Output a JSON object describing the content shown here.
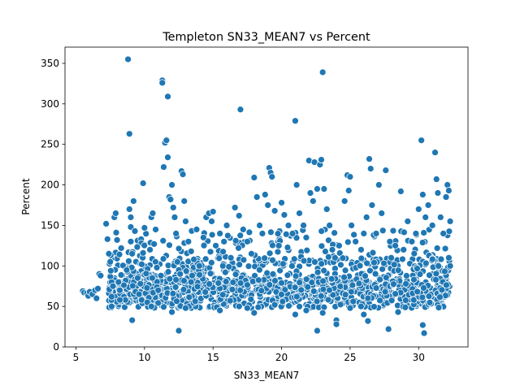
{
  "chart_data": {
    "type": "scatter",
    "title": "Templeton SN33_MEAN7 vs Percent",
    "xlabel": "SN33_MEAN7",
    "ylabel": "Percent",
    "xlim": [
      4.2,
      33.6
    ],
    "ylim": [
      0,
      370
    ],
    "x_ticks": [
      5,
      10,
      15,
      20,
      25,
      30
    ],
    "y_ticks": [
      0,
      50,
      100,
      150,
      200,
      250,
      300,
      350
    ],
    "grid": false,
    "legend": "none",
    "point_color": "#1f77b4",
    "points": [
      [
        5.5,
        69
      ],
      [
        5.6,
        67
      ],
      [
        5.8,
        66
      ],
      [
        5.9,
        63
      ],
      [
        6.0,
        68
      ],
      [
        6.2,
        65
      ],
      [
        6.4,
        70
      ],
      [
        6.5,
        60
      ],
      [
        6.6,
        72
      ],
      [
        6.7,
        90
      ],
      [
        6.8,
        88
      ],
      [
        7.2,
        152
      ],
      [
        7.3,
        133
      ],
      [
        7.4,
        115
      ],
      [
        7.5,
        105
      ],
      [
        7.6,
        80
      ],
      [
        7.7,
        75
      ],
      [
        7.8,
        160
      ],
      [
        7.9,
        165
      ],
      [
        8.0,
        132
      ],
      [
        8.1,
        80
      ],
      [
        8.2,
        70
      ],
      [
        8.3,
        122
      ],
      [
        8.5,
        62
      ],
      [
        8.6,
        58
      ],
      [
        8.7,
        95
      ],
      [
        8.8,
        355
      ],
      [
        8.9,
        263
      ],
      [
        8.9,
        170
      ],
      [
        9.0,
        160
      ],
      [
        9.0,
        130
      ],
      [
        9.0,
        148
      ],
      [
        9.1,
        115
      ],
      [
        9.2,
        180
      ],
      [
        9.1,
        33
      ],
      [
        9.3,
        143
      ],
      [
        9.5,
        85
      ],
      [
        9.6,
        65
      ],
      [
        9.7,
        78
      ],
      [
        9.8,
        102
      ],
      [
        9.9,
        202
      ],
      [
        10.0,
        147
      ],
      [
        10.2,
        55
      ],
      [
        10.4,
        120
      ],
      [
        10.5,
        160
      ],
      [
        10.6,
        165
      ],
      [
        10.7,
        127
      ],
      [
        10.8,
        105
      ],
      [
        10.9,
        98
      ],
      [
        11.0,
        70
      ],
      [
        11.2,
        88
      ],
      [
        11.3,
        329
      ],
      [
        11.3,
        326
      ],
      [
        11.4,
        222
      ],
      [
        11.5,
        252
      ],
      [
        11.6,
        255
      ],
      [
        11.7,
        309
      ],
      [
        11.7,
        234
      ],
      [
        11.8,
        185
      ],
      [
        11.9,
        182
      ],
      [
        12.0,
        200
      ],
      [
        12.1,
        172
      ],
      [
        12.2,
        160
      ],
      [
        12.3,
        140
      ],
      [
        12.4,
        105
      ],
      [
        12.5,
        95
      ],
      [
        12.6,
        90
      ],
      [
        12.7,
        217
      ],
      [
        12.8,
        213
      ],
      [
        12.9,
        180
      ],
      [
        12.0,
        43
      ],
      [
        13.0,
        155
      ],
      [
        13.2,
        130
      ],
      [
        13.4,
        118
      ],
      [
        13.6,
        108
      ],
      [
        13.8,
        145
      ],
      [
        14.0,
        100
      ],
      [
        14.3,
        135
      ],
      [
        14.5,
        160
      ],
      [
        14.7,
        165
      ],
      [
        14.9,
        155
      ],
      [
        15.0,
        167
      ],
      [
        15.2,
        125
      ],
      [
        15.5,
        140
      ],
      [
        15.8,
        130
      ],
      [
        16.0,
        150
      ],
      [
        16.3,
        110
      ],
      [
        16.6,
        172
      ],
      [
        16.9,
        162
      ],
      [
        17.0,
        293
      ],
      [
        17.2,
        145
      ],
      [
        17.5,
        130
      ],
      [
        17.8,
        115
      ],
      [
        18.0,
        209
      ],
      [
        18.2,
        185
      ],
      [
        18.4,
        150
      ],
      [
        18.6,
        140
      ],
      [
        18.8,
        188
      ],
      [
        19.0,
        175
      ],
      [
        19.1,
        221
      ],
      [
        19.2,
        215
      ],
      [
        19.3,
        210
      ],
      [
        19.5,
        168
      ],
      [
        19.8,
        125
      ],
      [
        20.0,
        178
      ],
      [
        20.2,
        163
      ],
      [
        20.5,
        150
      ],
      [
        20.8,
        140
      ],
      [
        21.0,
        279
      ],
      [
        21.1,
        200
      ],
      [
        21.3,
        165
      ],
      [
        21.6,
        150
      ],
      [
        21.8,
        135
      ],
      [
        22.0,
        230
      ],
      [
        22.1,
        190
      ],
      [
        22.3,
        180
      ],
      [
        22.4,
        228
      ],
      [
        22.6,
        195
      ],
      [
        22.8,
        225
      ],
      [
        22.9,
        231
      ],
      [
        23.0,
        339
      ],
      [
        23.1,
        195
      ],
      [
        23.3,
        170
      ],
      [
        23.5,
        150
      ],
      [
        23.7,
        120
      ],
      [
        23.9,
        110
      ],
      [
        24.2,
        125
      ],
      [
        24.6,
        180
      ],
      [
        24.8,
        212
      ],
      [
        24.9,
        193
      ],
      [
        25.0,
        210
      ],
      [
        25.1,
        150
      ],
      [
        25.4,
        130
      ],
      [
        25.8,
        120
      ],
      [
        26.0,
        140
      ],
      [
        26.2,
        160
      ],
      [
        26.4,
        232
      ],
      [
        26.5,
        220
      ],
      [
        26.6,
        175
      ],
      [
        26.9,
        140
      ],
      [
        27.1,
        200
      ],
      [
        27.3,
        165
      ],
      [
        27.6,
        218
      ],
      [
        27.9,
        130
      ],
      [
        28.0,
        110
      ],
      [
        28.3,
        125
      ],
      [
        28.7,
        192
      ],
      [
        28.9,
        120
      ],
      [
        29.2,
        155
      ],
      [
        29.5,
        130
      ],
      [
        29.8,
        140
      ],
      [
        30.0,
        170
      ],
      [
        30.2,
        255
      ],
      [
        30.3,
        188
      ],
      [
        30.5,
        160
      ],
      [
        30.7,
        175
      ],
      [
        31.0,
        150
      ],
      [
        31.2,
        240
      ],
      [
        31.3,
        207
      ],
      [
        31.4,
        190
      ],
      [
        31.6,
        160
      ],
      [
        31.8,
        140
      ],
      [
        32.1,
        200
      ],
      [
        32.2,
        193
      ],
      [
        32.0,
        185
      ],
      [
        32.3,
        155
      ],
      [
        32.2,
        110
      ],
      [
        32.3,
        100
      ],
      [
        12.5,
        20
      ],
      [
        20.0,
        79
      ],
      [
        22.6,
        20
      ],
      [
        24.0,
        33
      ],
      [
        24.0,
        28
      ],
      [
        26.3,
        32
      ],
      [
        27.8,
        22
      ],
      [
        30.3,
        27
      ],
      [
        30.4,
        17
      ],
      [
        28.5,
        43
      ],
      [
        21.8,
        45
      ],
      [
        25.0,
        48
      ],
      [
        7.6,
        50
      ],
      [
        7.6,
        62
      ],
      [
        8.2,
        58
      ],
      [
        10.5,
        50
      ],
      [
        13.0,
        48
      ],
      [
        15.5,
        45
      ],
      [
        17.5,
        48
      ],
      [
        18.0,
        42
      ],
      [
        19.5,
        52
      ],
      [
        21.0,
        40
      ],
      [
        23.0,
        42
      ],
      [
        26.0,
        40
      ]
    ]
  }
}
